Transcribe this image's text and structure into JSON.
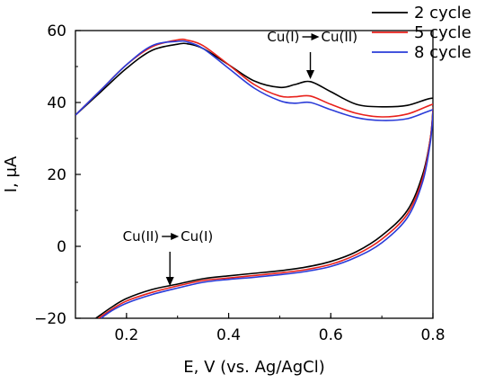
{
  "chart_data": {
    "type": "line",
    "title": "",
    "xlabel": "E, V (vs. Ag/AgCl)",
    "ylabel": "I, μA",
    "xlim": [
      0.1,
      0.8
    ],
    "ylim": [
      -20,
      60
    ],
    "xticks": [
      0.2,
      0.4,
      0.6,
      0.8
    ],
    "xtick_labels": [
      "0.2",
      "0.4",
      "0.6",
      "0.8"
    ],
    "yticks": [
      -20,
      0,
      20,
      40,
      60
    ],
    "ytick_labels": [
      "−20",
      "0",
      "20",
      "40",
      "60"
    ],
    "grid": false,
    "legend_position": "top-right",
    "series": [
      {
        "name": "2 cycle",
        "color": "#000000",
        "x": [
          0.1,
          0.15,
          0.2,
          0.25,
          0.3,
          0.32,
          0.35,
          0.4,
          0.45,
          0.5,
          0.53,
          0.56,
          0.6,
          0.65,
          0.7,
          0.75,
          0.8,
          0.8,
          0.795,
          0.78,
          0.75,
          0.7,
          0.65,
          0.6,
          0.55,
          0.5,
          0.45,
          0.4,
          0.35,
          0.3,
          0.25,
          0.2,
          0.17,
          0.14
        ],
        "y": [
          36.5,
          43.0,
          49.5,
          54.5,
          56.2,
          56.3,
          55.0,
          50.5,
          46.0,
          44.2,
          45.0,
          45.8,
          43.0,
          39.5,
          38.8,
          39.2,
          41.2,
          38.0,
          30.0,
          20.0,
          10.0,
          3.0,
          -1.5,
          -4.2,
          -5.8,
          -6.8,
          -7.5,
          -8.2,
          -9.0,
          -10.5,
          -12.0,
          -14.5,
          -17.0,
          -20.0
        ]
      },
      {
        "name": "5 cycle",
        "color": "#e8211b",
        "x": [
          0.1,
          0.15,
          0.2,
          0.25,
          0.3,
          0.32,
          0.35,
          0.4,
          0.45,
          0.5,
          0.53,
          0.56,
          0.6,
          0.65,
          0.7,
          0.75,
          0.8,
          0.8,
          0.795,
          0.78,
          0.75,
          0.7,
          0.65,
          0.6,
          0.55,
          0.5,
          0.45,
          0.4,
          0.35,
          0.3,
          0.25,
          0.2,
          0.17,
          0.145
        ],
        "y": [
          36.5,
          43.5,
          50.5,
          55.5,
          57.4,
          57.3,
          55.8,
          50.5,
          45.0,
          41.8,
          41.6,
          41.8,
          39.5,
          37.0,
          36.0,
          36.8,
          39.5,
          38.0,
          30.0,
          19.0,
          9.0,
          2.0,
          -2.3,
          -5.0,
          -6.5,
          -7.4,
          -8.1,
          -8.8,
          -9.5,
          -11.0,
          -12.8,
          -15.2,
          -17.6,
          -20.0
        ]
      },
      {
        "name": "8 cycle",
        "color": "#2a3bd8",
        "x": [
          0.1,
          0.15,
          0.2,
          0.25,
          0.3,
          0.32,
          0.35,
          0.4,
          0.45,
          0.5,
          0.53,
          0.56,
          0.6,
          0.65,
          0.7,
          0.75,
          0.8,
          0.8,
          0.795,
          0.78,
          0.75,
          0.7,
          0.65,
          0.6,
          0.55,
          0.5,
          0.45,
          0.4,
          0.35,
          0.3,
          0.25,
          0.2,
          0.17,
          0.15
        ],
        "y": [
          36.5,
          43.5,
          50.5,
          55.8,
          57.0,
          56.8,
          55.0,
          49.5,
          44.0,
          40.5,
          39.8,
          40.0,
          38.0,
          35.8,
          35.0,
          35.5,
          38.0,
          37.0,
          29.0,
          18.0,
          8.0,
          1.0,
          -3.0,
          -5.6,
          -7.0,
          -7.9,
          -8.6,
          -9.2,
          -10.0,
          -11.6,
          -13.4,
          -15.8,
          -18.0,
          -20.0
        ]
      }
    ],
    "annotations": [
      {
        "text_left": "Cu(I)",
        "text_right": "Cu(II)",
        "arrow_x": 0.56,
        "arrow_y_from": 54.0,
        "arrow_y_to": 46.5
      },
      {
        "text_left": "Cu(II)",
        "text_right": "Cu(I)",
        "arrow_x": 0.285,
        "arrow_y_from": -1.5,
        "arrow_y_to": -11.0
      }
    ]
  }
}
